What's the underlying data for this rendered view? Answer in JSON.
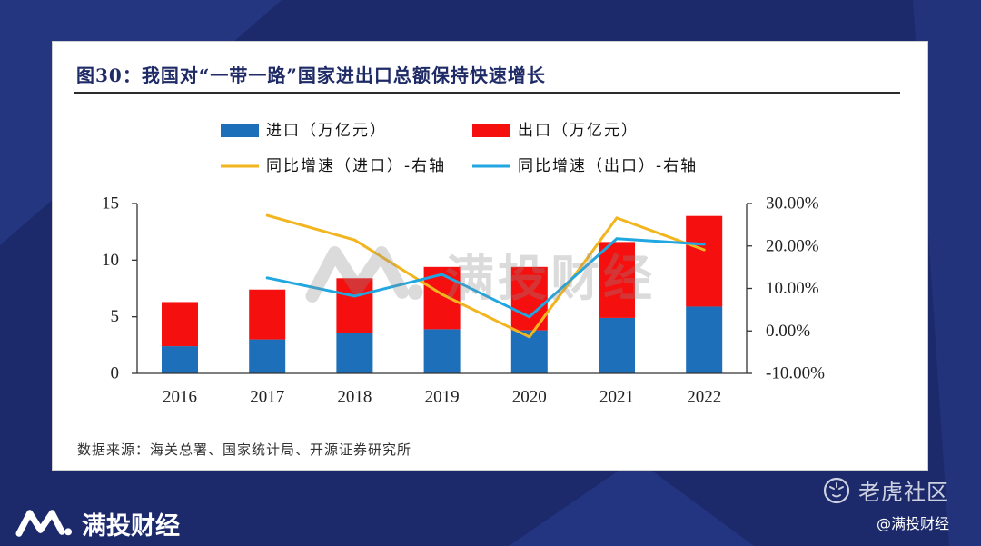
{
  "card": {
    "title": "图30：我国对“一带一路”国家进出口总额保持快速增长",
    "source": "数据来源：海关总署、国家统计局、开源证券研究所"
  },
  "watermark": {
    "text": "满投财经",
    "logo_icon": "mantou-logo-icon"
  },
  "brand": {
    "name": "满投财经",
    "logo_icon": "mantou-logo-icon"
  },
  "community": {
    "name": "老虎社区",
    "logo_icon": "tiger-icon",
    "handle": "@满投财经"
  },
  "colors": {
    "background": "#1c2a6c",
    "background_light": "#24367f",
    "card": "#ffffff",
    "title": "#1f2b66",
    "axis": "#333333"
  },
  "chart_data": {
    "type": "bar",
    "categories": [
      "2016",
      "2017",
      "2018",
      "2019",
      "2020",
      "2021",
      "2022"
    ],
    "series": [
      {
        "name": "进口（万亿元）",
        "type": "bar",
        "stacked": true,
        "right_axis": false,
        "color": "#1c6fb8",
        "values": [
          2.4,
          3.0,
          3.6,
          3.9,
          3.8,
          4.9,
          5.9
        ]
      },
      {
        "name": "出口（万亿元）",
        "type": "bar",
        "stacked": true,
        "right_axis": false,
        "color": "#f50f0f",
        "values": [
          3.9,
          4.4,
          4.8,
          5.5,
          5.6,
          6.7,
          8.0
        ]
      },
      {
        "name": "同比增速（进口）-右轴",
        "type": "line",
        "stacked": false,
        "right_axis": true,
        "color": "#f2b51f",
        "values": [
          null,
          27.2,
          21.4,
          8.6,
          -1.4,
          26.6,
          19.1
        ]
      },
      {
        "name": "同比增速（出口）-右轴",
        "type": "line",
        "stacked": false,
        "right_axis": true,
        "color": "#20a6e0",
        "values": [
          null,
          12.5,
          8.2,
          13.3,
          3.3,
          21.7,
          20.4
        ]
      }
    ],
    "xlabel": "",
    "ylabel": "",
    "ylim": [
      0,
      15
    ],
    "yticks": [
      0,
      5,
      10,
      15
    ],
    "ytick_labels": [
      "0",
      "5",
      "10",
      "15"
    ],
    "y2lim": [
      -10,
      30
    ],
    "y2ticks": [
      -10,
      0,
      10,
      20,
      30
    ],
    "y2tick_labels": [
      "-10.00%",
      "0.00%",
      "10.00%",
      "20.00%",
      "30.00%"
    ],
    "legend": "top",
    "grid": false
  }
}
